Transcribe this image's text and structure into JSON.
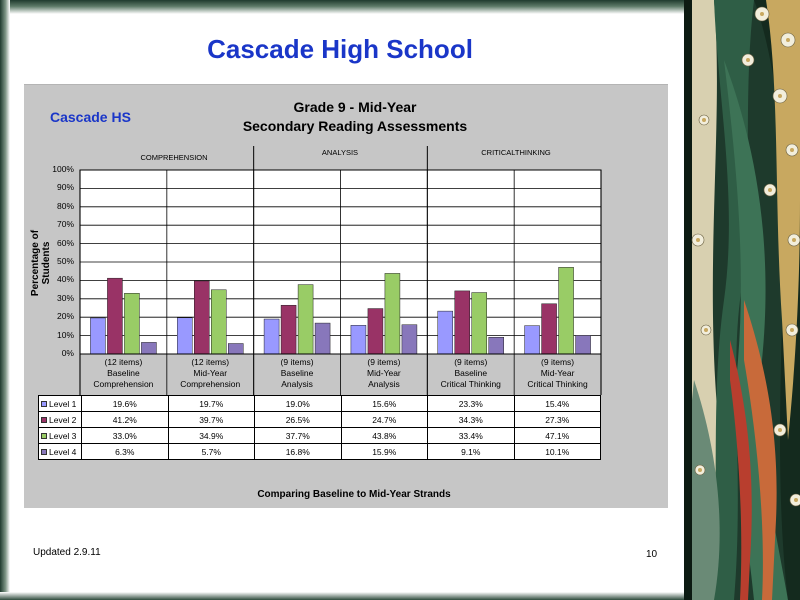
{
  "slide": {
    "title": "Cascade High School",
    "updated": "Updated  2.9.11",
    "page_number": "10"
  },
  "chart": {
    "school_label": "Cascade HS",
    "title_line1": "Grade 9 - Mid-Year",
    "title_line2": "Secondary Reading Assessments",
    "strands": [
      "COMPREHENSION",
      "ANALYSIS",
      "CRITICALTHINKING"
    ],
    "footer": "Comparing Baseline to Mid-Year Strands"
  },
  "chart_data": {
    "type": "bar",
    "ylabel": "Percentage of Students",
    "ylim": [
      0,
      100
    ],
    "yticks": [
      "0%",
      "10%",
      "20%",
      "30%",
      "40%",
      "50%",
      "60%",
      "70%",
      "80%",
      "90%",
      "100%"
    ],
    "grid": true,
    "categories": [
      [
        "(12 items)",
        "Baseline",
        "Comprehension"
      ],
      [
        "(12 items)",
        "Mid-Year",
        "Comprehension"
      ],
      [
        "(9 items)",
        "Baseline",
        "Analysis"
      ],
      [
        "(9 items)",
        "Mid-Year",
        "Analysis"
      ],
      [
        "(9 items)",
        "Baseline",
        "Critical Thinking"
      ],
      [
        "(9 items)",
        "Mid-Year",
        "Critical Thinking"
      ]
    ],
    "series": [
      {
        "name": "Level 1",
        "color": "#9999ff",
        "values": [
          19.6,
          19.7,
          19.0,
          15.6,
          23.3,
          15.4
        ],
        "labels": [
          "19.6%",
          "19.7%",
          "19.0%",
          "15.6%",
          "23.3%",
          "15.4%"
        ]
      },
      {
        "name": "Level 2",
        "color": "#993366",
        "values": [
          41.2,
          39.7,
          26.5,
          24.7,
          34.3,
          27.3
        ],
        "labels": [
          "41.2%",
          "39.7%",
          "26.5%",
          "24.7%",
          "34.3%",
          "27.3%"
        ]
      },
      {
        "name": "Level 3",
        "color": "#99cc66",
        "values": [
          33.0,
          34.9,
          37.7,
          43.8,
          33.4,
          47.1
        ],
        "labels": [
          "33.0%",
          "34.9%",
          "37.7%",
          "43.8%",
          "33.4%",
          "47.1%"
        ]
      },
      {
        "name": "Level 4",
        "color": "#8877bb",
        "values": [
          6.3,
          5.7,
          16.8,
          15.9,
          9.1,
          10.1
        ],
        "labels": [
          "6.3%",
          "5.7%",
          "16.8%",
          "15.9%",
          "9.1%",
          "10.1%"
        ]
      }
    ]
  }
}
